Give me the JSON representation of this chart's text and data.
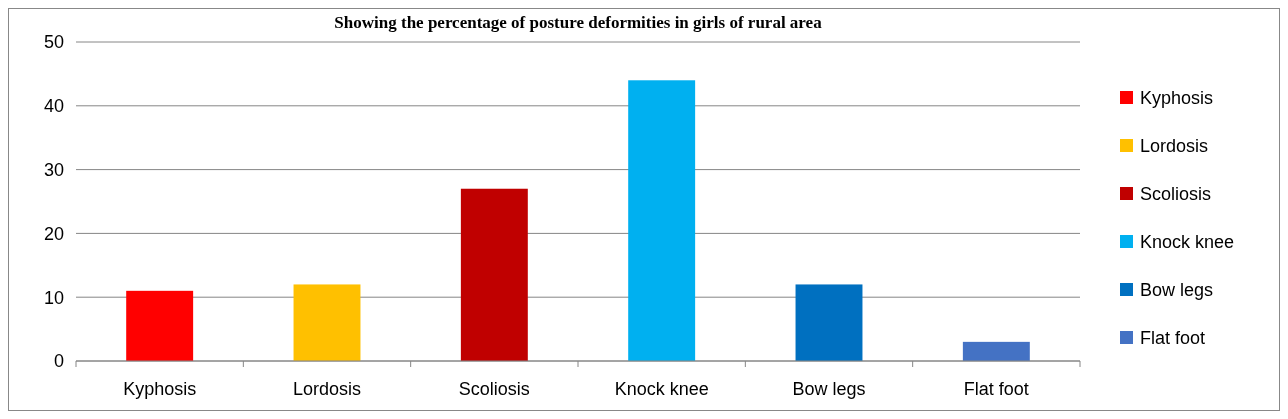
{
  "chart_data": {
    "type": "bar",
    "title": "Showing the percentage of posture deformities in girls of rural area",
    "categories": [
      "Kyphosis",
      "Lordosis",
      "Scoliosis",
      "Knock knee",
      "Bow legs",
      "Flat foot"
    ],
    "series": [
      {
        "name": "Kyphosis",
        "color": "#ff0000",
        "values": [
          11,
          null,
          null,
          null,
          null,
          null
        ]
      },
      {
        "name": "Lordosis",
        "color": "#ffc000",
        "values": [
          null,
          12,
          null,
          null,
          null,
          null
        ]
      },
      {
        "name": "Scoliosis",
        "color": "#c00000",
        "values": [
          null,
          null,
          27,
          null,
          null,
          null
        ]
      },
      {
        "name": "Knock knee",
        "color": "#00b0f0",
        "values": [
          null,
          null,
          null,
          44,
          null,
          null
        ]
      },
      {
        "name": "Bow legs",
        "color": "#0070c0",
        "values": [
          null,
          null,
          null,
          null,
          12,
          null
        ]
      },
      {
        "name": "Flat foot",
        "color": "#4472c4",
        "values": [
          null,
          null,
          null,
          null,
          null,
          3
        ]
      }
    ],
    "ylim": [
      0,
      50
    ],
    "yticks": [
      0,
      10,
      20,
      30,
      40,
      50
    ],
    "grid": "y",
    "legend": "right"
  }
}
